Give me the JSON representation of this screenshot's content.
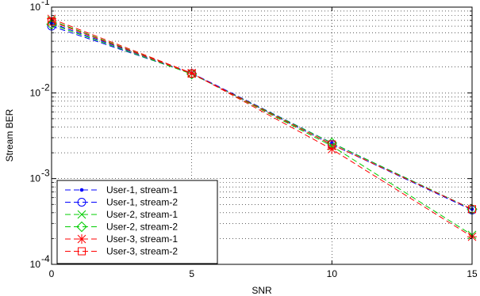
{
  "chart_data": {
    "type": "line",
    "title": "",
    "xlabel": "SNR",
    "ylabel": "Stream BER",
    "xlim": [
      0,
      15
    ],
    "ylim": [
      0.0001,
      0.1
    ],
    "yscale": "log",
    "grid": true,
    "grid_style": "dotted",
    "legend_position": "bottom-left",
    "x_ticks": [
      0,
      5,
      10,
      15
    ],
    "x_tick_labels": [
      "0",
      "5",
      "10",
      "15"
    ],
    "y_ticks": [
      0.0001,
      0.001,
      0.01,
      0.1
    ],
    "y_tick_labels": [
      {
        "base": "10",
        "exp": "-4"
      },
      {
        "base": "10",
        "exp": "-3"
      },
      {
        "base": "10",
        "exp": "-2"
      },
      {
        "base": "10",
        "exp": "-1"
      }
    ],
    "x": [
      0,
      5,
      10,
      15
    ],
    "series": [
      {
        "name": "User-1, stream-1",
        "color": "#0000ff",
        "marker": "dot",
        "values": [
          0.065,
          0.017,
          0.0026,
          0.00044
        ]
      },
      {
        "name": "User-1, stream-2",
        "color": "#0000ff",
        "marker": "circle",
        "values": [
          0.06,
          0.0168,
          0.0025,
          0.00043
        ]
      },
      {
        "name": "User-2, stream-1",
        "color": "#00cc00",
        "marker": "x",
        "values": [
          0.07,
          0.0168,
          0.0024,
          0.00022
        ]
      },
      {
        "name": "User-2, stream-2",
        "color": "#00cc00",
        "marker": "diamond",
        "values": [
          0.063,
          0.0166,
          0.0026,
          0.00044
        ]
      },
      {
        "name": "User-3, stream-1",
        "color": "#ff0000",
        "marker": "star",
        "values": [
          0.073,
          0.017,
          0.0022,
          0.00021
        ]
      },
      {
        "name": "User-3, stream-2",
        "color": "#ff0000",
        "marker": "square",
        "values": [
          0.068,
          0.0168,
          0.0025,
          0.00044
        ]
      }
    ]
  }
}
